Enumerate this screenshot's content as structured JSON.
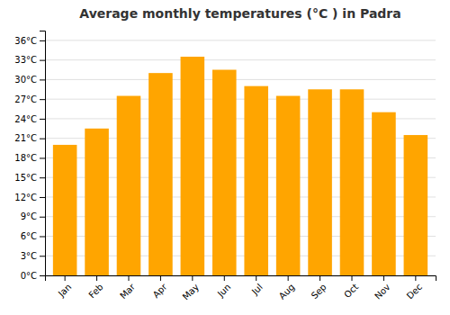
{
  "chart_data": {
    "type": "bar",
    "title": "Average monthly temperatures (°C ) in Padra",
    "categories": [
      "Jan",
      "Feb",
      "Mar",
      "Apr",
      "May",
      "Jun",
      "Jul",
      "Aug",
      "Sep",
      "Oct",
      "Nov",
      "Dec"
    ],
    "values": [
      20.0,
      22.5,
      27.5,
      31.0,
      33.5,
      31.5,
      29.0,
      27.5,
      28.5,
      28.5,
      25.0,
      21.5
    ],
    "color": "#FFA500",
    "ylim": [
      0,
      37.5
    ],
    "yticks": [
      {
        "value": 0,
        "label": "0°C"
      },
      {
        "value": 3,
        "label": "3°C"
      },
      {
        "value": 6,
        "label": "6°C"
      },
      {
        "value": 9,
        "label": "9°C"
      },
      {
        "value": 12,
        "label": "12°C"
      },
      {
        "value": 15,
        "label": "15°C"
      },
      {
        "value": 18,
        "label": "18°C"
      },
      {
        "value": 21,
        "label": "21°C"
      },
      {
        "value": 24,
        "label": "24°C"
      },
      {
        "value": 27,
        "label": "27°C"
      },
      {
        "value": 30,
        "label": "30°C"
      },
      {
        "value": 33,
        "label": "33°C"
      },
      {
        "value": 36,
        "label": "36°C"
      }
    ],
    "grid": true
  }
}
